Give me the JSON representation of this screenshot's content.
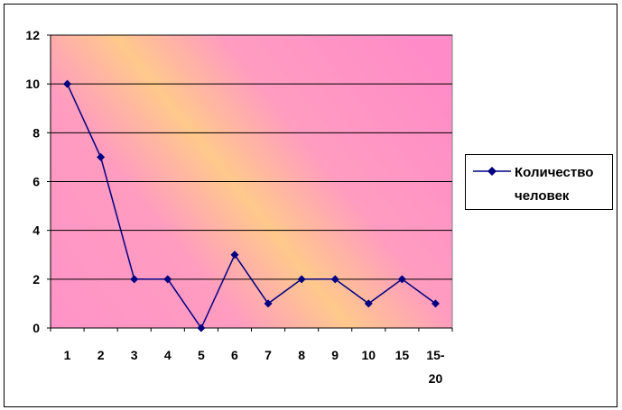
{
  "chart_data": {
    "type": "line",
    "categories": [
      "1",
      "2",
      "3",
      "4",
      "5",
      "6",
      "7",
      "8",
      "9",
      "10",
      "15",
      "15-\n20"
    ],
    "series": [
      {
        "name": "Количество человек",
        "values": [
          10,
          7,
          2,
          2,
          0,
          3,
          1,
          2,
          2,
          1,
          2,
          1
        ]
      }
    ],
    "ylim": [
      0,
      12
    ],
    "yticks": [
      0,
      2,
      4,
      6,
      8,
      10,
      12
    ],
    "grid": true,
    "legend_position": "right",
    "colors": {
      "series": "#000080",
      "plot_pink": "#ff8fc8",
      "plot_band": "#ffcc88",
      "gridline": "#000000"
    }
  }
}
